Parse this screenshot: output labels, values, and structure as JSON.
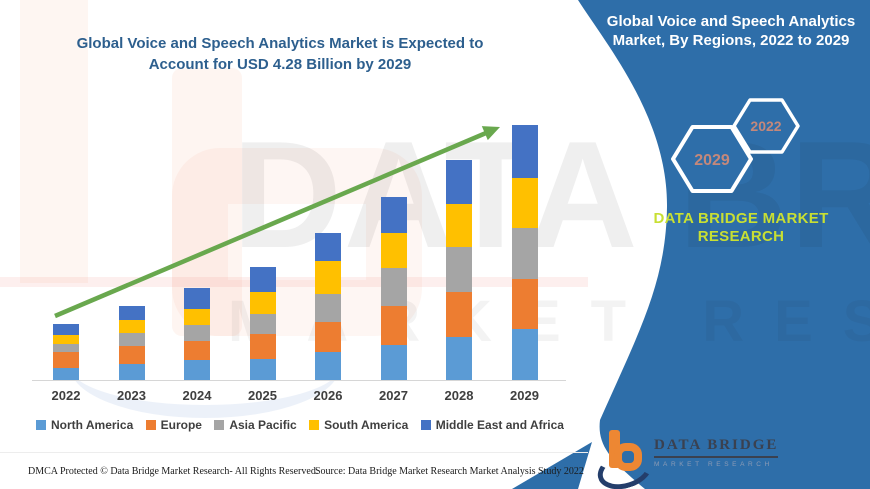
{
  "page": {
    "main_title_line1": "Global Voice and Speech Analytics Market is Expected to",
    "main_title_line2": "Account for USD 4.28 Billion by 2029"
  },
  "right_panel": {
    "title_line1": "Global Voice and Speech Analytics",
    "title_line2": "Market, By Regions, 2022 to 2029",
    "hexagon_back_year": "2022",
    "hexagon_front_year": "2029",
    "brand_line1": "DATA BRIDGE MARKET",
    "brand_line2": "RESEARCH",
    "panel_color": "#2E6EA9",
    "brand_text_color": "#C8DF33",
    "hexagon_year_color": "#C4887B"
  },
  "logo": {
    "name": "DATA BRIDGE",
    "tagline": "MARKET RESEARCH"
  },
  "watermark": {
    "big_text": "DATA BRIDGE",
    "sub_text": "MARKET RESEARCH"
  },
  "footer": {
    "dmca": "DMCA Protected © Data Bridge Market Research- All Rights Reserved.",
    "source": "Source: Data Bridge Market Research Market Analysis Study 2022"
  },
  "chart_data": {
    "type": "bar",
    "stacked": true,
    "unit": "USD Billion",
    "categories": [
      "2022",
      "2023",
      "2024",
      "2025",
      "2026",
      "2027",
      "2028",
      "2029"
    ],
    "series": [
      {
        "name": "North America",
        "color": "#5B9BD5",
        "values": [
          0.2,
          0.26,
          0.33,
          0.35,
          0.47,
          0.59,
          0.72,
          0.85
        ]
      },
      {
        "name": "Europe",
        "color": "#ED7D31",
        "values": [
          0.27,
          0.3,
          0.32,
          0.41,
          0.5,
          0.65,
          0.76,
          0.84
        ]
      },
      {
        "name": "Asia Pacific",
        "color": "#A5A5A5",
        "values": [
          0.14,
          0.22,
          0.26,
          0.33,
          0.47,
          0.64,
          0.75,
          0.86
        ]
      },
      {
        "name": "South America",
        "color": "#FFC000",
        "values": [
          0.15,
          0.22,
          0.27,
          0.36,
          0.55,
          0.59,
          0.72,
          0.84
        ]
      },
      {
        "name": "Middle East and Africa",
        "color": "#4472C4",
        "values": [
          0.18,
          0.23,
          0.35,
          0.41,
          0.46,
          0.61,
          0.73,
          0.89
        ]
      }
    ],
    "totals_usd_billion": [
      0.94,
      1.23,
      1.53,
      1.86,
      2.45,
      3.08,
      3.68,
      4.28
    ],
    "y_axis_visible": false,
    "gridlines": false,
    "legend_position": "bottom",
    "trend_arrow": {
      "color": "#69A84E",
      "direction": "up-right"
    }
  }
}
